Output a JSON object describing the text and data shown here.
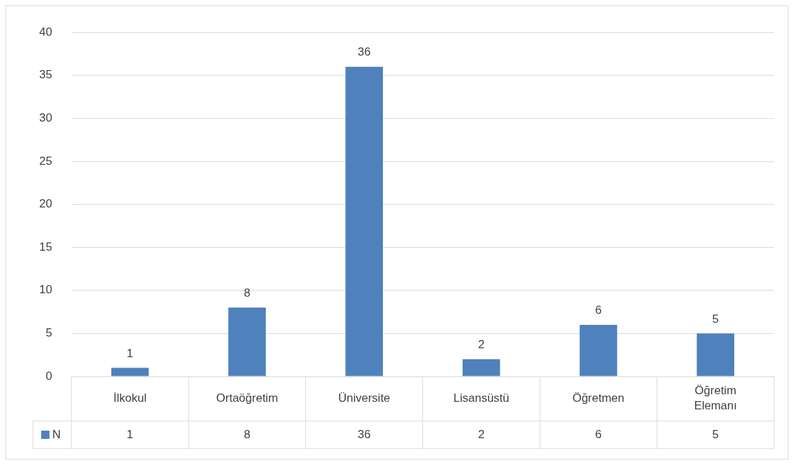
{
  "chart_data": {
    "type": "bar",
    "categories": [
      "İlkokul",
      "Ortaöğretim",
      "Üniversite",
      "Lisansüstü",
      "Öğretmen",
      "Öğretim Elemanı"
    ],
    "series": [
      {
        "name": "N",
        "color": "#4f81bd",
        "values": [
          1,
          8,
          36,
          2,
          6,
          5
        ],
        "value_labels": [
          "1",
          "8",
          "36",
          "2",
          "6",
          "5"
        ]
      }
    ],
    "annotations": [
      "1",
      "8",
      "36",
      "2",
      "6",
      "5"
    ],
    "ylim": [
      0,
      40
    ],
    "yticks": [
      0,
      5,
      10,
      15,
      20,
      25,
      30,
      35,
      40
    ],
    "grid": "y",
    "data_labels": true,
    "legend": "bottom"
  }
}
